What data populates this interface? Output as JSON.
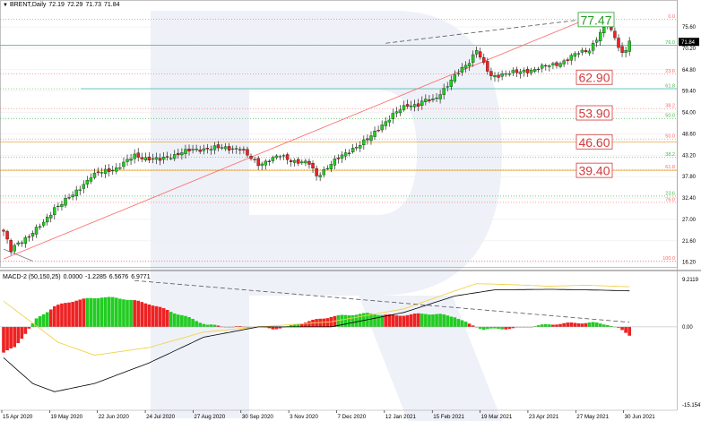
{
  "header": {
    "symbol": "BRENT,Daily",
    "open": "72.19",
    "high": "72.29",
    "low": "71.73",
    "close": "71.84"
  },
  "macd_header": {
    "label": "MACD-2 (50,150,25)",
    "v1": "0.0000",
    "v2": "-1.2285",
    "v3": "6.5676",
    "v4": "6.9771"
  },
  "colors": {
    "bull": "#22cc22",
    "bear": "#ee2222",
    "grid": "#eeeeee",
    "fib_red": "#ff6666",
    "fib_green": "#44bb44",
    "level_line": "#55bbbb",
    "target_orange": "#e59a1a",
    "macd_signal": "#f0d44a",
    "macd_main": "#000000"
  },
  "chart_data": {
    "type": "candlestick",
    "price_axis": {
      "ticks": [
        "75.60",
        "70.20",
        "64.80",
        "59.40",
        "54.00",
        "48.60",
        "43.20",
        "37.80",
        "32.40",
        "27.00",
        "21.60",
        "16.20"
      ],
      "min": 15.0,
      "max": 80.6,
      "last_price_label": "71.84"
    },
    "macd_axis": {
      "ticks": [
        "9.2119",
        "0.00",
        "-15.1547"
      ],
      "min": -15.1547,
      "max": 9.2119
    },
    "x_ticks": [
      "15 Apr 2020",
      "19 May 2020",
      "22 Jun 2020",
      "24 Jul 2020",
      "27 Aug 2020",
      "30 Sep 2020",
      "3 Nov 2020",
      "7 Dec 2020",
      "12 Jan 2021",
      "15 Feb 2021",
      "19 Mar 2021",
      "23 Apr 2021",
      "27 May 2021",
      "30 Jun 2021"
    ],
    "fib_levels": [
      {
        "label": "0.0",
        "price": 77.5,
        "color": "red"
      },
      {
        "label": "76.0",
        "price": 71.0,
        "color": "green"
      },
      {
        "label": "23.6",
        "price": 63.7,
        "color": "red"
      },
      {
        "label": "61.8",
        "price": 60.0,
        "color": "green"
      },
      {
        "label": "38.2",
        "price": 55.0,
        "color": "red"
      },
      {
        "label": "50.0",
        "price": 52.5,
        "color": "green"
      },
      {
        "label": "50.0",
        "price": 47.3,
        "color": "red"
      },
      {
        "label": "38.2",
        "price": 42.7,
        "color": "green"
      },
      {
        "label": "61.8",
        "price": 39.5,
        "color": "red"
      },
      {
        "label": "23.6",
        "price": 32.9,
        "color": "green"
      },
      {
        "label": "76.0",
        "price": 31.3,
        "color": "red"
      },
      {
        "label": "100.0",
        "price": 16.5,
        "color": "red"
      }
    ],
    "targets": [
      {
        "label": "77.47",
        "price": 77.47,
        "style": "green"
      },
      {
        "label": "62.90",
        "price": 62.9,
        "style": "red"
      },
      {
        "label": "53.90",
        "price": 53.9,
        "style": "red"
      },
      {
        "label": "46.60",
        "price": 46.6,
        "style": "red"
      },
      {
        "label": "39.40",
        "price": 39.4,
        "style": "red"
      }
    ],
    "close_path": [
      [
        0,
        24
      ],
      [
        2,
        19
      ],
      [
        4,
        21
      ],
      [
        7,
        23
      ],
      [
        11,
        26
      ],
      [
        14,
        30
      ],
      [
        19,
        33
      ],
      [
        24,
        38
      ],
      [
        31,
        40
      ],
      [
        36,
        43
      ],
      [
        43,
        42
      ],
      [
        49,
        44
      ],
      [
        56,
        45
      ],
      [
        60,
        45
      ],
      [
        62,
        45
      ],
      [
        65,
        45
      ],
      [
        67,
        43
      ],
      [
        70,
        41
      ],
      [
        73,
        42
      ],
      [
        76,
        43
      ],
      [
        79,
        42
      ],
      [
        84,
        41
      ],
      [
        86,
        38
      ],
      [
        90,
        41
      ],
      [
        93,
        43
      ],
      [
        96,
        45
      ],
      [
        100,
        47
      ],
      [
        104,
        51
      ],
      [
        108,
        54
      ],
      [
        111,
        56
      ],
      [
        114,
        56
      ],
      [
        116,
        57
      ],
      [
        118,
        57
      ],
      [
        121,
        60
      ],
      [
        125,
        64
      ],
      [
        128,
        67
      ],
      [
        130,
        70
      ],
      [
        132,
        66
      ],
      [
        134,
        63
      ],
      [
        138,
        64
      ],
      [
        141,
        64
      ],
      [
        146,
        65
      ],
      [
        151,
        66
      ],
      [
        154,
        67
      ],
      [
        158,
        69
      ],
      [
        161,
        70
      ],
      [
        164,
        74
      ],
      [
        166,
        76
      ],
      [
        168,
        73
      ],
      [
        170,
        69
      ],
      [
        171,
        70
      ],
      [
        172,
        72
      ]
    ],
    "macd_hist_path": [
      [
        0,
        -5
      ],
      [
        3,
        -4
      ],
      [
        9,
        1.5
      ],
      [
        14,
        4
      ],
      [
        20,
        5.2
      ],
      [
        27,
        5.8
      ],
      [
        33,
        5.5
      ],
      [
        40,
        4.5
      ],
      [
        46,
        3
      ],
      [
        52,
        1.5
      ],
      [
        56,
        0.4
      ],
      [
        62,
        0
      ],
      [
        66,
        0
      ],
      [
        70,
        0
      ],
      [
        74,
        -0.4
      ],
      [
        78,
        0
      ],
      [
        82,
        0.8
      ],
      [
        86,
        1.4
      ],
      [
        90,
        2
      ],
      [
        96,
        2.4
      ],
      [
        100,
        2.6
      ],
      [
        104,
        2.4
      ],
      [
        108,
        2.2
      ],
      [
        112,
        2.4
      ],
      [
        116,
        2.6
      ],
      [
        120,
        2.4
      ],
      [
        124,
        2
      ],
      [
        128,
        0.5
      ],
      [
        132,
        -0.5
      ],
      [
        136,
        -0.4
      ],
      [
        140,
        -0.3
      ],
      [
        146,
        0.2
      ],
      [
        152,
        0.6
      ],
      [
        158,
        0.8
      ],
      [
        162,
        0.8
      ],
      [
        166,
        0.5
      ],
      [
        169,
        -0.3
      ],
      [
        172,
        -1.6
      ]
    ],
    "macd_signal_path": [
      [
        0,
        5
      ],
      [
        15,
        -3
      ],
      [
        25,
        -5.5
      ],
      [
        40,
        -4
      ],
      [
        55,
        -1
      ],
      [
        70,
        0
      ],
      [
        90,
        1
      ],
      [
        110,
        3.5
      ],
      [
        124,
        7
      ],
      [
        130,
        8.4
      ],
      [
        140,
        8.2
      ],
      [
        150,
        7.9
      ],
      [
        160,
        8.1
      ],
      [
        172,
        7.8
      ]
    ],
    "macd_main_path": [
      [
        0,
        -6
      ],
      [
        8,
        -11
      ],
      [
        14,
        -12.6
      ],
      [
        25,
        -11
      ],
      [
        40,
        -7
      ],
      [
        55,
        -2
      ],
      [
        70,
        0
      ],
      [
        90,
        0
      ],
      [
        110,
        2.8
      ],
      [
        124,
        6
      ],
      [
        135,
        7.2
      ],
      [
        150,
        7.3
      ],
      [
        160,
        7.2
      ],
      [
        172,
        7.0
      ]
    ]
  }
}
